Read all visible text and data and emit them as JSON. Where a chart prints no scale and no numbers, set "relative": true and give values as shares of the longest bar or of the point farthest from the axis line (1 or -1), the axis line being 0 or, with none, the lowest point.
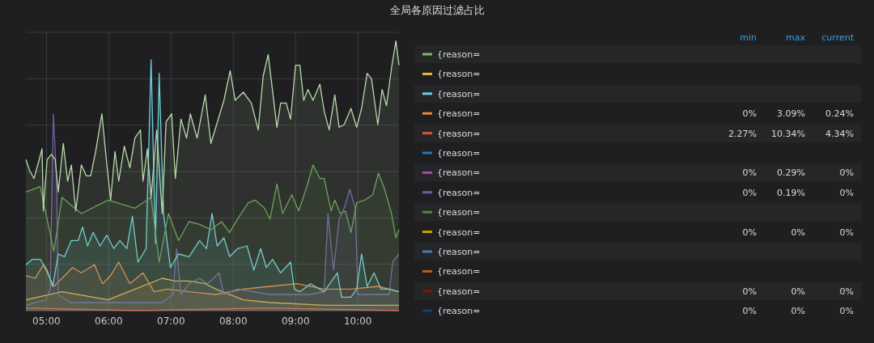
{
  "chart_data": [
    {
      "type": "area",
      "title": "全局各原因过滤占比",
      "relative": true,
      "grid": true,
      "xlim": [
        4.67,
        10.66
      ],
      "xticks": [
        {
          "value": 5,
          "label": "05:00"
        },
        {
          "value": 6,
          "label": "06:00"
        },
        {
          "value": 7,
          "label": "07:00"
        },
        {
          "value": 8,
          "label": "08:00"
        },
        {
          "value": 9,
          "label": "09:00"
        },
        {
          "value": 10,
          "label": "10:00"
        }
      ],
      "series": [
        {
          "color": "#b7dbab",
          "x": [
            4.67,
            4.73,
            4.8,
            4.86,
            4.93,
            4.95,
            5.01,
            5.08,
            5.14,
            5.19,
            5.27,
            5.34,
            5.4,
            5.47,
            5.56,
            5.64,
            5.71,
            5.79,
            5.89,
            5.97,
            6.03,
            6.1,
            6.16,
            6.25,
            6.34,
            6.42,
            6.51,
            6.55,
            6.62,
            6.68,
            6.77,
            6.86,
            6.92,
            7.01,
            7.07,
            7.16,
            7.25,
            7.31,
            7.42,
            7.55,
            7.64,
            7.72,
            7.85,
            7.95,
            8.03,
            8.16,
            8.29,
            8.4,
            8.48,
            8.56,
            8.7,
            8.76,
            8.85,
            8.92,
            9.0,
            9.07,
            9.13,
            9.2,
            9.28,
            9.39,
            9.46,
            9.54,
            9.63,
            9.7,
            9.78,
            9.89,
            9.98,
            10.06,
            10.15,
            10.22,
            10.32,
            10.39,
            10.46,
            10.54,
            10.61,
            10.66
          ],
          "values": [
            0.56,
            0.52,
            0.49,
            0.54,
            0.6,
            0.37,
            0.56,
            0.58,
            0.56,
            0.44,
            0.62,
            0.48,
            0.54,
            0.37,
            0.54,
            0.5,
            0.5,
            0.59,
            0.73,
            0.54,
            0.41,
            0.59,
            0.48,
            0.61,
            0.53,
            0.64,
            0.67,
            0.48,
            0.6,
            0.42,
            0.67,
            0.36,
            0.7,
            0.73,
            0.49,
            0.71,
            0.64,
            0.73,
            0.64,
            0.8,
            0.62,
            0.68,
            0.78,
            0.89,
            0.78,
            0.81,
            0.77,
            0.67,
            0.87,
            0.95,
            0.68,
            0.77,
            0.77,
            0.71,
            0.91,
            0.91,
            0.78,
            0.82,
            0.78,
            0.84,
            0.74,
            0.67,
            0.8,
            0.68,
            0.69,
            0.75,
            0.68,
            0.75,
            0.88,
            0.86,
            0.69,
            0.82,
            0.76,
            0.9,
            1.0,
            0.91
          ]
        },
        {
          "color": "#629e51",
          "x": [
            4.67,
            4.9,
            5.12,
            5.25,
            5.56,
            5.99,
            6.42,
            6.68,
            6.81,
            6.96,
            7.12,
            7.29,
            7.46,
            7.64,
            7.81,
            7.94,
            8.07,
            8.24,
            8.35,
            8.5,
            8.59,
            8.7,
            8.79,
            8.94,
            9.05,
            9.18,
            9.28,
            9.39,
            9.46,
            9.57,
            9.63,
            9.72,
            9.8,
            9.89,
            9.98,
            10.11,
            10.24,
            10.33,
            10.43,
            10.54,
            10.61,
            10.66
          ],
          "values": [
            0.44,
            0.46,
            0.22,
            0.42,
            0.36,
            0.41,
            0.38,
            0.42,
            0.18,
            0.36,
            0.26,
            0.33,
            0.32,
            0.3,
            0.33,
            0.29,
            0.34,
            0.4,
            0.41,
            0.38,
            0.34,
            0.47,
            0.36,
            0.43,
            0.37,
            0.46,
            0.54,
            0.49,
            0.49,
            0.37,
            0.41,
            0.36,
            0.37,
            0.29,
            0.4,
            0.41,
            0.43,
            0.51,
            0.45,
            0.36,
            0.27,
            0.3
          ]
        },
        {
          "color": "#6ed0e0",
          "x": [
            4.67,
            4.77,
            4.9,
            5.01,
            5.1,
            5.19,
            5.29,
            5.4,
            5.51,
            5.58,
            5.66,
            5.75,
            5.86,
            5.97,
            6.08,
            6.18,
            6.29,
            6.38,
            6.47,
            6.6,
            6.68,
            6.75,
            6.81,
            6.88,
            6.99,
            7.12,
            7.29,
            7.46,
            7.57,
            7.66,
            7.74,
            7.85,
            7.94,
            8.07,
            8.22,
            8.33,
            8.44,
            8.53,
            8.63,
            8.76,
            8.92,
            8.98,
            9.07,
            9.24,
            9.46,
            9.67,
            9.74,
            9.89,
            9.98,
            10.06,
            10.15,
            10.26,
            10.37,
            10.5,
            10.66
          ],
          "values": [
            0.17,
            0.19,
            0.19,
            0.15,
            0.09,
            0.21,
            0.2,
            0.26,
            0.26,
            0.31,
            0.24,
            0.29,
            0.24,
            0.28,
            0.23,
            0.26,
            0.23,
            0.35,
            0.18,
            0.23,
            0.93,
            0.25,
            0.88,
            0.36,
            0.16,
            0.21,
            0.2,
            0.26,
            0.23,
            0.36,
            0.24,
            0.27,
            0.2,
            0.23,
            0.24,
            0.15,
            0.23,
            0.16,
            0.19,
            0.14,
            0.18,
            0.08,
            0.07,
            0.1,
            0.07,
            0.14,
            0.05,
            0.05,
            0.08,
            0.21,
            0.09,
            0.14,
            0.08,
            0.08,
            0.07
          ]
        },
        {
          "color": "#705da0",
          "x": [
            4.67,
            4.99,
            5.06,
            5.11,
            5.16,
            5.19,
            5.38,
            5.99,
            6.86,
            7.03,
            7.09,
            7.16,
            7.29,
            7.46,
            7.59,
            7.77,
            7.85,
            8.07,
            8.59,
            9.24,
            9.46,
            9.52,
            9.61,
            9.7,
            9.78,
            9.87,
            9.96,
            10.0,
            10.33,
            10.5,
            10.56,
            10.66
          ],
          "values": [
            0.02,
            0.04,
            0.08,
            0.73,
            0.5,
            0.06,
            0.03,
            0.03,
            0.03,
            0.06,
            0.23,
            0.06,
            0.1,
            0.12,
            0.1,
            0.14,
            0.06,
            0.08,
            0.06,
            0.06,
            0.07,
            0.36,
            0.15,
            0.34,
            0.38,
            0.45,
            0.38,
            0.06,
            0.06,
            0.06,
            0.18,
            0.21
          ]
        },
        {
          "color": "#ef843c",
          "x": [
            4.67,
            4.82,
            4.95,
            5.12,
            5.25,
            5.42,
            5.56,
            5.77,
            5.9,
            6.03,
            6.16,
            6.34,
            6.55,
            6.73,
            6.94,
            7.29,
            7.72,
            8.16,
            8.59,
            9.02,
            9.46,
            9.89,
            10.33,
            10.66
          ],
          "values": [
            0.13,
            0.12,
            0.17,
            0.09,
            0.12,
            0.16,
            0.14,
            0.17,
            0.1,
            0.13,
            0.18,
            0.1,
            0.14,
            0.07,
            0.08,
            0.07,
            0.06,
            0.08,
            0.09,
            0.1,
            0.08,
            0.08,
            0.09,
            0.07
          ]
        },
        {
          "color": "#eab839",
          "x": [
            4.67,
            5.25,
            5.99,
            6.86,
            7.07,
            7.29,
            7.55,
            7.72,
            8.16,
            8.59,
            9.46,
            10.66
          ],
          "values": [
            0.04,
            0.07,
            0.04,
            0.12,
            0.11,
            0.11,
            0.1,
            0.08,
            0.04,
            0.03,
            0.02,
            0.02
          ]
        },
        {
          "color": "#e24d42",
          "x": [
            4.67,
            6.42,
            8.59,
            10.66
          ],
          "values": [
            0.01,
            0.0,
            0.01,
            0.0
          ]
        }
      ]
    },
    {
      "type": "other",
      "categories": [
        "{reason=",
        "{reason=",
        "{reason=",
        "{reason=",
        "{reason=",
        "{reason=",
        "{reason=",
        "{reason=",
        "{reason=",
        "{reason=",
        "{reason=",
        "{reason=",
        "{reason=",
        "{reason="
      ],
      "colors": [
        "#7eb26d",
        "#eab839",
        "#6ed0e0",
        "#ef843c",
        "#e24d42",
        "#1f78c1",
        "#ba43a9",
        "#705da0",
        "#508642",
        "#cca300",
        "#447ebc",
        "#c15c17",
        "#890f02",
        "#0a437c"
      ],
      "series": [
        {
          "name": "min",
          "values": [
            null,
            null,
            null,
            0,
            2.27,
            null,
            0,
            0,
            null,
            0,
            null,
            null,
            0,
            0
          ],
          "value_labels": [
            null,
            null,
            null,
            "0%",
            "2.27%",
            null,
            "0%",
            "0%",
            null,
            "0%",
            null,
            null,
            "0%",
            "0%"
          ]
        },
        {
          "name": "max",
          "values": [
            null,
            null,
            null,
            3.09,
            10.34,
            null,
            0.29,
            0.19,
            null,
            0,
            null,
            null,
            0,
            0
          ],
          "value_labels": [
            null,
            null,
            null,
            "3.09%",
            "10.34%",
            null,
            "0.29%",
            "0.19%",
            null,
            "0%",
            null,
            null,
            "0%",
            "0%"
          ]
        },
        {
          "name": "current",
          "values": [
            null,
            null,
            null,
            0.24,
            4.34,
            null,
            0,
            0,
            null,
            0,
            null,
            null,
            0,
            0
          ],
          "value_labels": [
            null,
            null,
            null,
            "0.24%",
            "4.34%",
            null,
            "0%",
            "0%",
            null,
            "0%",
            null,
            null,
            "0%",
            "0%"
          ]
        }
      ]
    }
  ]
}
